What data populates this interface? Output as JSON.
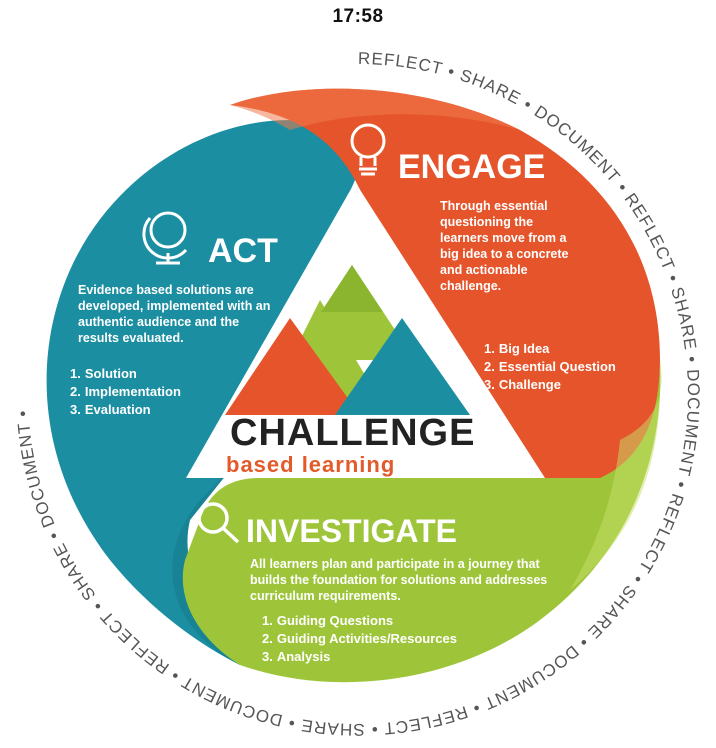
{
  "status_bar": {
    "time": "17:58"
  },
  "ring_text": "REFLECT • SHARE • DOCUMENT • REFLECT • SHARE • DOCUMENT • REFLECT • SHARE • DOCUMENT • REFLECT • SHARE • DOCUMENT • REFLECT • SHARE • DOCUMENT •",
  "logo": {
    "main": "CHALLENGE",
    "sub": "based learning"
  },
  "sections": {
    "engage": {
      "title": "ENGAGE",
      "description": "Through essential questioning the learners move from a big idea to a concrete and actionable challenge.",
      "steps": [
        {
          "num": "1.",
          "label": "Big Idea"
        },
        {
          "num": "2.",
          "label": "Essential Question"
        },
        {
          "num": "3.",
          "label": "Challenge"
        }
      ],
      "icon": "lightbulb-icon",
      "color": "#e5542b"
    },
    "act": {
      "title": "ACT",
      "description": "Evidence based solutions are developed, implemented with an authentic audience and the results evaluated.",
      "steps": [
        {
          "num": "1.",
          "label": "Solution"
        },
        {
          "num": "2.",
          "label": "Implementation"
        },
        {
          "num": "3.",
          "label": "Evaluation"
        }
      ],
      "icon": "globe-icon",
      "color": "#1b8ea1"
    },
    "investigate": {
      "title": "INVESTIGATE",
      "description": "All learners plan and participate in a journey that builds the foundation for solutions and addresses curriculum requirements.",
      "steps": [
        {
          "num": "1.",
          "label": "Guiding Questions"
        },
        {
          "num": "2.",
          "label": "Guiding Activities/Resources"
        },
        {
          "num": "3.",
          "label": "Analysis"
        }
      ],
      "icon": "magnifier-icon",
      "color": "#9ec53a"
    }
  }
}
